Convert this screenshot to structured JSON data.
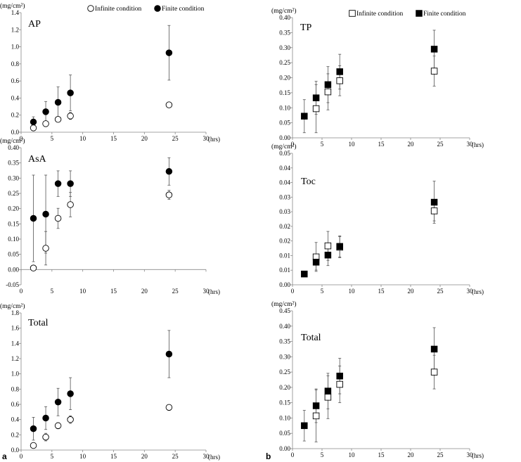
{
  "figure_labels": {
    "a": "a",
    "b": "b"
  },
  "chart_data": [
    {
      "type": "scatter",
      "title": "AP",
      "unit": "(mg/cm²)",
      "xlabel": "(hrs)",
      "xlim": [
        0,
        30
      ],
      "xticks": [
        0,
        5,
        10,
        15,
        20,
        25,
        30
      ],
      "ylim": [
        0,
        1.4
      ],
      "yticks": [
        "0.0",
        "0.2",
        "0.4",
        "0.6",
        "0.8",
        "1.0",
        "1.2",
        "1.4"
      ],
      "marker": "circle",
      "legend": true,
      "series": [
        {
          "name": "Infinite condition",
          "filled": false,
          "points": [
            {
              "x": 2,
              "y": 0.05,
              "err": 0.02
            },
            {
              "x": 4,
              "y": 0.1,
              "err": 0.03
            },
            {
              "x": 6,
              "y": 0.15,
              "err": 0.03
            },
            {
              "x": 8,
              "y": 0.19,
              "err": 0.04
            },
            {
              "x": 24,
              "y": 0.32,
              "err": 0.03
            }
          ]
        },
        {
          "name": "Finite condition",
          "filled": true,
          "points": [
            {
              "x": 2,
              "y": 0.12,
              "err": 0.06
            },
            {
              "x": 4,
              "y": 0.24,
              "err": 0.12
            },
            {
              "x": 6,
              "y": 0.35,
              "err": 0.18
            },
            {
              "x": 8,
              "y": 0.46,
              "err": 0.21
            },
            {
              "x": 24,
              "y": 0.93,
              "err": 0.32
            }
          ]
        }
      ]
    },
    {
      "type": "scatter",
      "title": "AsA",
      "unit": "(mg/cm²)",
      "xlabel": "(hrs)",
      "xlim": [
        0,
        30
      ],
      "xticks": [
        0,
        5,
        10,
        15,
        20,
        25,
        30
      ],
      "ylim": [
        -0.05,
        0.4
      ],
      "yticks": [
        "-0.05",
        "0.00",
        "0.05",
        "0.10",
        "0.15",
        "0.20",
        "0.25",
        "0.30",
        "0.35",
        "0.40"
      ],
      "marker": "circle",
      "legend": false,
      "series": [
        {
          "name": "Infinite condition",
          "filled": false,
          "points": [
            {
              "x": 2,
              "y": 0.005,
              "err": 0.005
            },
            {
              "x": 4,
              "y": 0.07,
              "err": 0.055
            },
            {
              "x": 6,
              "y": 0.168,
              "err": 0.033
            },
            {
              "x": 8,
              "y": 0.213,
              "err": 0.04
            },
            {
              "x": 24,
              "y": 0.245,
              "err": 0.015
            }
          ]
        },
        {
          "name": "Finite condition",
          "filled": true,
          "points": [
            {
              "x": 2,
              "y": 0.168,
              "err": 0.142
            },
            {
              "x": 4,
              "y": 0.182,
              "err": 0.128
            },
            {
              "x": 6,
              "y": 0.282,
              "err": 0.042
            },
            {
              "x": 8,
              "y": 0.282,
              "err": 0.042
            },
            {
              "x": 24,
              "y": 0.322,
              "err": 0.045
            }
          ]
        }
      ]
    },
    {
      "type": "scatter",
      "title": "Total",
      "unit": "(mg/cm²)",
      "xlabel": "(hrs)",
      "xlim": [
        0,
        30
      ],
      "xticks": [
        0,
        5,
        10,
        15,
        20,
        25,
        30
      ],
      "ylim": [
        0,
        1.8
      ],
      "yticks": [
        "0.0",
        "0.2",
        "0.4",
        "0.6",
        "0.8",
        "1.0",
        "1.2",
        "1.4",
        "1.6",
        "1.8"
      ],
      "marker": "circle",
      "legend": false,
      "series": [
        {
          "name": "Infinite condition",
          "filled": false,
          "points": [
            {
              "x": 2,
              "y": 0.06,
              "err": 0.02
            },
            {
              "x": 4,
              "y": 0.17,
              "err": 0.05
            },
            {
              "x": 6,
              "y": 0.32,
              "err": 0.04
            },
            {
              "x": 8,
              "y": 0.4,
              "err": 0.05
            },
            {
              "x": 24,
              "y": 0.56,
              "err": 0.03
            }
          ]
        },
        {
          "name": "Finite condition",
          "filled": true,
          "points": [
            {
              "x": 2,
              "y": 0.28,
              "err": 0.15
            },
            {
              "x": 4,
              "y": 0.42,
              "err": 0.15
            },
            {
              "x": 6,
              "y": 0.63,
              "err": 0.18
            },
            {
              "x": 8,
              "y": 0.74,
              "err": 0.21
            },
            {
              "x": 24,
              "y": 1.26,
              "err": 0.31
            }
          ]
        }
      ]
    },
    {
      "type": "scatter",
      "title": "TP",
      "unit": "(mg/cm²)",
      "xlabel": "(hrs)",
      "xlim": [
        0,
        30
      ],
      "xticks": [
        0,
        5,
        10,
        15,
        20,
        25,
        30
      ],
      "ylim": [
        0,
        0.4
      ],
      "yticks": [
        "0.00",
        "0.05",
        "0.10",
        "0.15",
        "0.20",
        "0.25",
        "0.30",
        "0.35",
        "0.40"
      ],
      "marker": "square",
      "legend": true,
      "series": [
        {
          "name": "Infinite condition",
          "filled": false,
          "points": [
            {
              "x": 4,
              "y": 0.097,
              "err": 0.08
            },
            {
              "x": 6,
              "y": 0.153,
              "err": 0.06
            },
            {
              "x": 8,
              "y": 0.19,
              "err": 0.05
            },
            {
              "x": 24,
              "y": 0.222,
              "err": 0.05
            }
          ]
        },
        {
          "name": "Finite condition",
          "filled": true,
          "points": [
            {
              "x": 2,
              "y": 0.072,
              "err": 0.055
            },
            {
              "x": 4,
              "y": 0.133,
              "err": 0.055
            },
            {
              "x": 6,
              "y": 0.177,
              "err": 0.06
            },
            {
              "x": 8,
              "y": 0.22,
              "err": 0.058
            },
            {
              "x": 24,
              "y": 0.295,
              "err": 0.063
            }
          ]
        }
      ]
    },
    {
      "type": "scatter",
      "title": "Toc",
      "unit": "(mg/cm²)",
      "xlabel": "(hrs)",
      "xlim": [
        0,
        30
      ],
      "xticks": [
        0,
        5,
        10,
        15,
        20,
        25,
        30
      ],
      "ylim": [
        0,
        0.05
      ],
      "yticks": [
        "0.00",
        "0.01",
        "0.01",
        "0.02",
        "0.02",
        "0.03",
        "0.03",
        "0.04",
        "0.04",
        "0.05"
      ],
      "marker": "square",
      "legend": false,
      "series": [
        {
          "name": "Infinite condition",
          "filled": false,
          "points": [
            {
              "x": 4,
              "y": 0.0106,
              "err": 0.0055
            },
            {
              "x": 6,
              "y": 0.0148,
              "err": 0.0055
            },
            {
              "x": 8,
              "y": 0.0143,
              "err": 0.004
            },
            {
              "x": 24,
              "y": 0.0281,
              "err": 0.0038
            }
          ]
        },
        {
          "name": "Finite condition",
          "filled": true,
          "points": [
            {
              "x": 2,
              "y": 0.0041,
              "err": 0.001
            },
            {
              "x": 4,
              "y": 0.0086,
              "err": 0.003
            },
            {
              "x": 6,
              "y": 0.0113,
              "err": 0.004
            },
            {
              "x": 8,
              "y": 0.0146,
              "err": 0.004
            },
            {
              "x": 24,
              "y": 0.0314,
              "err": 0.008
            }
          ]
        }
      ]
    },
    {
      "type": "scatter",
      "title": "Total",
      "unit": "(mg/cm²)",
      "xlabel": "(hrs)",
      "xlim": [
        0,
        30
      ],
      "xticks": [
        0,
        5,
        10,
        15,
        20,
        25,
        30
      ],
      "ylim": [
        0,
        0.45
      ],
      "yticks": [
        "0.00",
        "0.05",
        "0.10",
        "0.15",
        "0.20",
        "0.25",
        "0.30",
        "0.35",
        "0.40",
        "0.45"
      ],
      "marker": "square",
      "legend": false,
      "series": [
        {
          "name": "Infinite condition",
          "filled": false,
          "points": [
            {
              "x": 4,
              "y": 0.107,
              "err": 0.085
            },
            {
              "x": 6,
              "y": 0.168,
              "err": 0.07
            },
            {
              "x": 8,
              "y": 0.21,
              "err": 0.06
            },
            {
              "x": 24,
              "y": 0.25,
              "err": 0.055
            }
          ]
        },
        {
          "name": "Finite condition",
          "filled": true,
          "points": [
            {
              "x": 2,
              "y": 0.075,
              "err": 0.05
            },
            {
              "x": 4,
              "y": 0.14,
              "err": 0.055
            },
            {
              "x": 6,
              "y": 0.188,
              "err": 0.058
            },
            {
              "x": 8,
              "y": 0.237,
              "err": 0.058
            },
            {
              "x": 24,
              "y": 0.325,
              "err": 0.07
            }
          ]
        }
      ]
    }
  ]
}
